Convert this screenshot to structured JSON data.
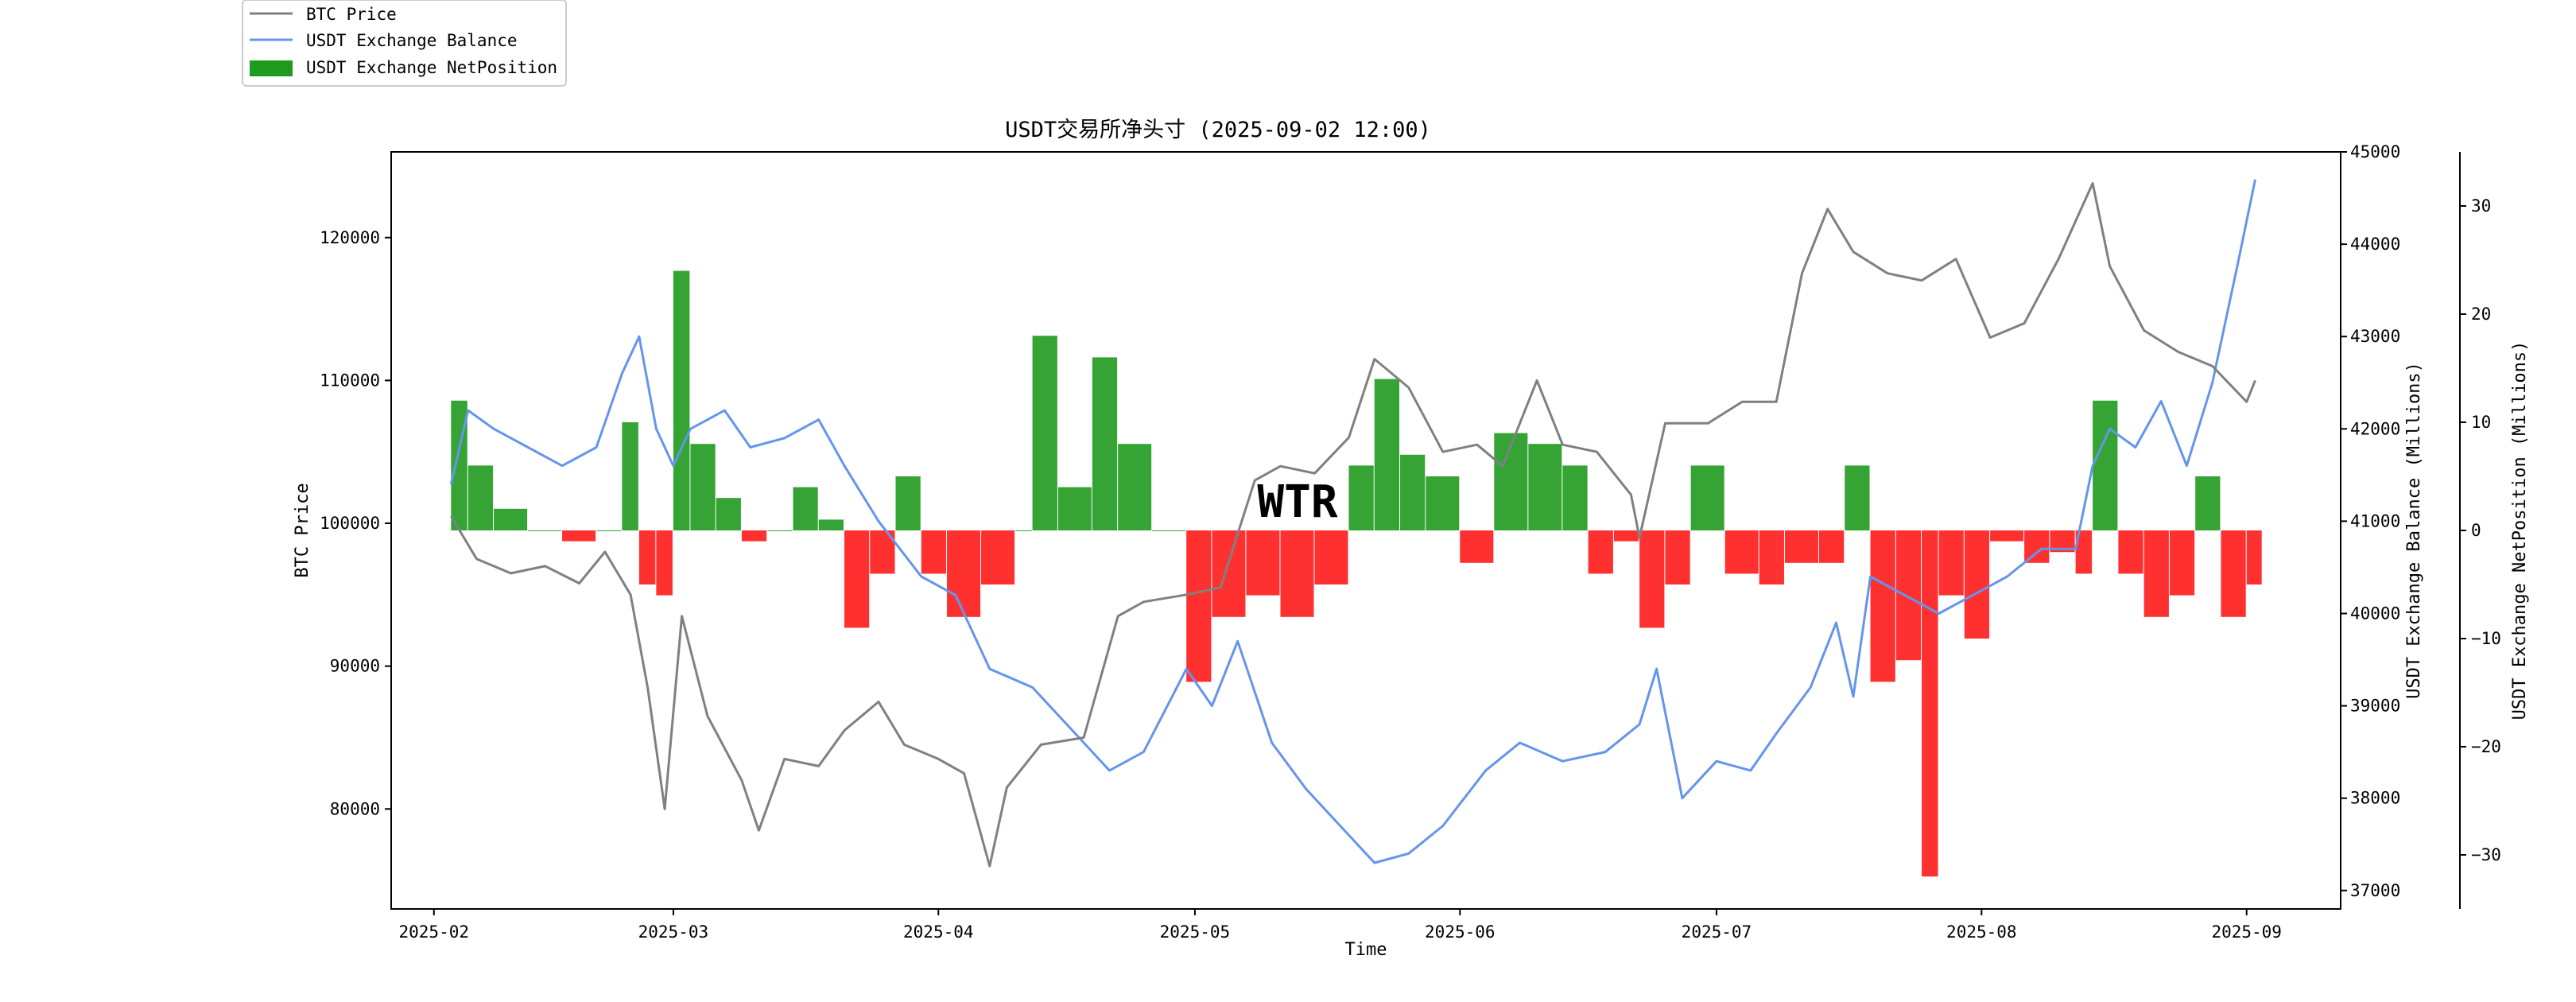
{
  "chart_data": {
    "type": "line",
    "title": "USDT交易所净头寸 (2025-09-02 12:00)",
    "xlabel": "Time",
    "ylabel": "BTC Price",
    "ylabel_right": "USDT Exchange Balance (Millions)",
    "ylabel_right2": "USDT Exchange NetPosition (Millions)",
    "watermark": "WTR",
    "x_ticks": [
      "2025-02",
      "2025-03",
      "2025-04",
      "2025-05",
      "2025-06",
      "2025-07",
      "2025-08",
      "2025-09"
    ],
    "y_ticks": [
      "80000",
      "90000",
      "100000",
      "110000",
      "120000"
    ],
    "y_right_ticks": [
      "37000",
      "38000",
      "39000",
      "40000",
      "41000",
      "42000",
      "43000",
      "44000",
      "45000"
    ],
    "y_right2_ticks": [
      "−30",
      "−20",
      "−10",
      "0",
      "10",
      "20",
      "30"
    ],
    "ylim": [
      73000,
      126000
    ],
    "ylim_right": [
      36800,
      45000
    ],
    "ylim_right2": [
      -35,
      35
    ],
    "xlim": [
      "2025-01-27",
      "2025-09-12"
    ],
    "legend_position": "outside-top-left",
    "grid": false,
    "colors": {
      "price": "#808080",
      "balance": "#6495ED",
      "net_positive": "#1f9a1f",
      "net_negative": "#ff1a1a"
    },
    "series": [
      {
        "name": "BTC Price",
        "axis": "left",
        "style": "line",
        "x": [
          "2025-02-03",
          "2025-02-06",
          "2025-02-10",
          "2025-02-14",
          "2025-02-18",
          "2025-02-21",
          "2025-02-24",
          "2025-02-26",
          "2025-02-28",
          "2025-03-02",
          "2025-03-05",
          "2025-03-09",
          "2025-03-11",
          "2025-03-14",
          "2025-03-18",
          "2025-03-21",
          "2025-03-25",
          "2025-03-28",
          "2025-04-01",
          "2025-04-04",
          "2025-04-07",
          "2025-04-09",
          "2025-04-13",
          "2025-04-18",
          "2025-04-22",
          "2025-04-25",
          "2025-04-30",
          "2025-05-04",
          "2025-05-08",
          "2025-05-11",
          "2025-05-15",
          "2025-05-19",
          "2025-05-22",
          "2025-05-26",
          "2025-05-30",
          "2025-06-03",
          "2025-06-06",
          "2025-06-10",
          "2025-06-13",
          "2025-06-17",
          "2025-06-21",
          "2025-06-22",
          "2025-06-25",
          "2025-06-30",
          "2025-07-04",
          "2025-07-08",
          "2025-07-11",
          "2025-07-14",
          "2025-07-17",
          "2025-07-21",
          "2025-07-25",
          "2025-07-29",
          "2025-08-02",
          "2025-08-06",
          "2025-08-10",
          "2025-08-14",
          "2025-08-16",
          "2025-08-20",
          "2025-08-24",
          "2025-08-28",
          "2025-09-01",
          "2025-09-02"
        ],
        "values": [
          100500,
          97500,
          96500,
          97000,
          95800,
          98000,
          95000,
          88500,
          80000,
          93500,
          86500,
          82000,
          78500,
          83500,
          83000,
          85500,
          87500,
          84500,
          83500,
          82500,
          76000,
          81500,
          84500,
          85000,
          93500,
          94500,
          95000,
          95500,
          103000,
          104000,
          103500,
          106000,
          111500,
          109500,
          105000,
          105500,
          104000,
          110000,
          105500,
          105000,
          102000,
          99000,
          107000,
          107000,
          108500,
          108500,
          117500,
          122000,
          119000,
          117500,
          117000,
          118500,
          113000,
          114000,
          118500,
          123800,
          118000,
          113500,
          112000,
          111000,
          108500,
          110000
        ]
      },
      {
        "name": "USDT Exchange Balance",
        "axis": "right",
        "style": "line",
        "x": [
          "2025-02-03",
          "2025-02-05",
          "2025-02-08",
          "2025-02-12",
          "2025-02-16",
          "2025-02-20",
          "2025-02-23",
          "2025-02-25",
          "2025-02-27",
          "2025-03-01",
          "2025-03-03",
          "2025-03-07",
          "2025-03-10",
          "2025-03-14",
          "2025-03-18",
          "2025-03-21",
          "2025-03-25",
          "2025-03-30",
          "2025-04-03",
          "2025-04-07",
          "2025-04-12",
          "2025-04-17",
          "2025-04-21",
          "2025-04-25",
          "2025-04-30",
          "2025-05-03",
          "2025-05-06",
          "2025-05-10",
          "2025-05-14",
          "2025-05-18",
          "2025-05-22",
          "2025-05-26",
          "2025-05-30",
          "2025-06-04",
          "2025-06-08",
          "2025-06-13",
          "2025-06-18",
          "2025-06-22",
          "2025-06-24",
          "2025-06-27",
          "2025-07-01",
          "2025-07-05",
          "2025-07-08",
          "2025-07-12",
          "2025-07-15",
          "2025-07-17",
          "2025-07-19",
          "2025-07-23",
          "2025-07-27",
          "2025-07-31",
          "2025-08-04",
          "2025-08-08",
          "2025-08-12",
          "2025-08-14",
          "2025-08-16",
          "2025-08-19",
          "2025-08-22",
          "2025-08-25",
          "2025-08-28",
          "2025-08-31",
          "2025-09-02"
        ],
        "values": [
          41400,
          42200,
          42000,
          41800,
          41600,
          41800,
          42600,
          43000,
          42000,
          41600,
          42000,
          42200,
          41800,
          41900,
          42100,
          41600,
          41000,
          40400,
          40200,
          39400,
          39200,
          38700,
          38300,
          38500,
          39400,
          39000,
          39700,
          38600,
          38100,
          37700,
          37300,
          37400,
          37700,
          38300,
          38600,
          38400,
          38500,
          38800,
          39400,
          38000,
          38400,
          38300,
          38700,
          39200,
          39900,
          39100,
          40400,
          40200,
          40000,
          40200,
          40400,
          40700,
          40700,
          41600,
          42000,
          41800,
          42300,
          41600,
          42500,
          43800,
          44700
        ]
      },
      {
        "name": "USDT Exchange NetPosition",
        "axis": "right2",
        "style": "bar",
        "x": [
          "2025-02-03",
          "2025-02-05",
          "2025-02-08",
          "2025-02-12",
          "2025-02-16",
          "2025-02-20",
          "2025-02-23",
          "2025-02-25",
          "2025-02-27",
          "2025-03-01",
          "2025-03-03",
          "2025-03-06",
          "2025-03-09",
          "2025-03-12",
          "2025-03-15",
          "2025-03-18",
          "2025-03-21",
          "2025-03-24",
          "2025-03-27",
          "2025-03-30",
          "2025-04-02",
          "2025-04-06",
          "2025-04-10",
          "2025-04-12",
          "2025-04-15",
          "2025-04-19",
          "2025-04-22",
          "2025-04-26",
          "2025-04-30",
          "2025-05-03",
          "2025-05-07",
          "2025-05-11",
          "2025-05-15",
          "2025-05-19",
          "2025-05-22",
          "2025-05-25",
          "2025-05-28",
          "2025-06-01",
          "2025-06-05",
          "2025-06-09",
          "2025-06-13",
          "2025-06-16",
          "2025-06-19",
          "2025-06-22",
          "2025-06-25",
          "2025-06-28",
          "2025-07-02",
          "2025-07-06",
          "2025-07-09",
          "2025-07-13",
          "2025-07-16",
          "2025-07-19",
          "2025-07-22",
          "2025-07-25",
          "2025-07-27",
          "2025-07-30",
          "2025-08-02",
          "2025-08-06",
          "2025-08-09",
          "2025-08-12",
          "2025-08-14",
          "2025-08-17",
          "2025-08-20",
          "2025-08-23",
          "2025-08-26",
          "2025-08-29",
          "2025-09-01"
        ],
        "values": [
          12,
          6,
          2,
          0,
          -1,
          0,
          10,
          -5,
          -6,
          24,
          8,
          3,
          -1,
          0,
          4,
          1,
          -9,
          -4,
          5,
          -4,
          -8,
          -5,
          0,
          18,
          4,
          16,
          8,
          0,
          -14,
          -8,
          -6,
          -8,
          -5,
          6,
          14,
          7,
          5,
          -3,
          9,
          8,
          6,
          -4,
          -1,
          -9,
          -5,
          6,
          -4,
          -5,
          -3,
          -3,
          6,
          -14,
          -12,
          -32,
          -6,
          -10,
          -1,
          -3,
          -2,
          -4,
          12,
          -4,
          -8,
          -6,
          5,
          -8,
          -5
        ]
      }
    ]
  }
}
